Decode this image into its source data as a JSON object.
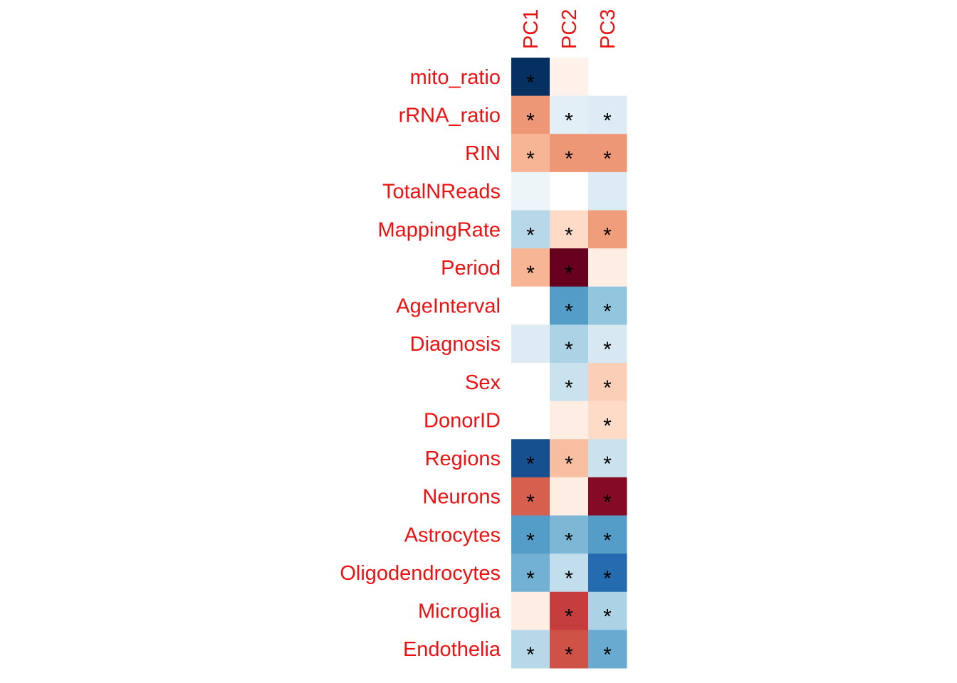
{
  "chart_data": {
    "type": "heatmap",
    "columns": [
      "PC1",
      "PC2",
      "PC3"
    ],
    "rows": [
      "mito_ratio",
      "rRNA_ratio",
      "RIN",
      "TotalNReads",
      "MappingRate",
      "Period",
      "AgeInterval",
      "Diagnosis",
      "Sex",
      "DonorID",
      "Regions",
      "Neurons",
      "Astrocytes",
      "Oligodendrocytes",
      "Microglia",
      "Endothelia"
    ],
    "values": [
      [
        -1.0,
        0.03,
        0.0
      ],
      [
        0.3,
        -0.05,
        -0.06
      ],
      [
        0.2,
        0.3,
        0.3
      ],
      [
        -0.03,
        0.0,
        -0.06
      ],
      [
        -0.15,
        0.08,
        0.28
      ],
      [
        0.2,
        1.0,
        0.04
      ],
      [
        0.0,
        -0.45,
        -0.25
      ],
      [
        -0.06,
        -0.18,
        -0.07
      ],
      [
        0.0,
        -0.1,
        0.12
      ],
      [
        0.0,
        0.04,
        0.08
      ],
      [
        -0.85,
        0.17,
        -0.1
      ],
      [
        0.5,
        0.04,
        0.9
      ],
      [
        -0.45,
        -0.32,
        -0.45
      ],
      [
        -0.35,
        -0.12,
        -0.72
      ],
      [
        0.04,
        0.62,
        -0.18
      ],
      [
        -0.15,
        0.55,
        -0.38
      ]
    ],
    "significant": [
      [
        true,
        false,
        false
      ],
      [
        true,
        true,
        true
      ],
      [
        true,
        true,
        true
      ],
      [
        false,
        false,
        false
      ],
      [
        true,
        true,
        true
      ],
      [
        true,
        true,
        false
      ],
      [
        false,
        true,
        true
      ],
      [
        false,
        true,
        true
      ],
      [
        false,
        true,
        true
      ],
      [
        false,
        false,
        true
      ],
      [
        true,
        true,
        true
      ],
      [
        true,
        false,
        true
      ],
      [
        true,
        true,
        true
      ],
      [
        true,
        true,
        true
      ],
      [
        false,
        true,
        true
      ],
      [
        true,
        true,
        true
      ]
    ],
    "marker": "*",
    "scale": {
      "min": -1,
      "max": 1,
      "palette": "RdBu (reversed)"
    },
    "label_color": "#ee1111",
    "title": "",
    "xlabel": "",
    "ylabel": ""
  }
}
